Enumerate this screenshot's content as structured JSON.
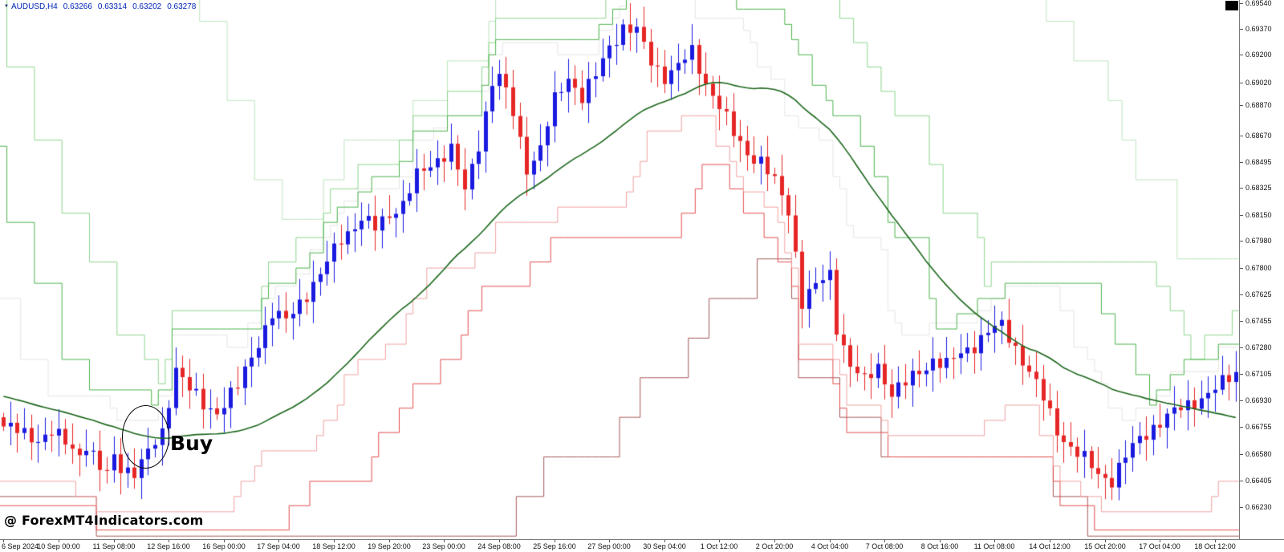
{
  "header": {
    "symbol": "AUDUSD,H4",
    "open": "0.63266",
    "high": "0.63314",
    "low": "0.63202",
    "close": "0.63278"
  },
  "icons": {
    "dropdown": "▼"
  },
  "watermark": {
    "text": "@ ForexMT4Indicators.com"
  },
  "annotation": {
    "label": "Buy",
    "index": 20,
    "price": 0.6652
  },
  "chart_data": {
    "type": "candlestick",
    "symbol": "AUDUSD",
    "timeframe": "H4",
    "n_candles": 180,
    "ylim": [
      0.6602,
      0.6956
    ],
    "legend_position": "none",
    "grid": false,
    "y_axis_labels": [
      "0.69540",
      "0.69370",
      "0.69200",
      "0.69020",
      "0.68870",
      "0.68670",
      "0.68495",
      "0.68325",
      "0.68150",
      "0.67980",
      "0.67800",
      "0.67625",
      "0.67455",
      "0.67280",
      "0.67105",
      "0.66930",
      "0.66755",
      "0.66580",
      "0.66405",
      "0.66230"
    ],
    "x_axis_labels": [
      "6 Sep 2024",
      "10 Sep 00:00",
      "11 Sep 08:00",
      "12 Sep 16:00",
      "16 Sep 00:00",
      "17 Sep 04:00",
      "18 Sep 12:00",
      "19 Sep 20:00",
      "23 Sep 00:00",
      "24 Sep 08:00",
      "25 Sep 16:00",
      "27 Sep 00:00",
      "30 Sep 04:00",
      "1 Oct 12:00",
      "2 Oct 20:00",
      "4 Oct 04:00",
      "7 Oct 08:00",
      "8 Oct 16:00",
      "11 Oct 08:00",
      "14 Oct 12:00",
      "15 Oct 20:00",
      "17 Oct 04:00",
      "18 Oct 12:00"
    ],
    "price_path": [
      [
        0,
        0.6676
      ],
      [
        3,
        0.6671
      ],
      [
        5,
        0.6668
      ],
      [
        7,
        0.6672
      ],
      [
        9,
        0.6665
      ],
      [
        11,
        0.6658
      ],
      [
        12,
        0.6665
      ],
      [
        14,
        0.6648
      ],
      [
        15,
        0.6644
      ],
      [
        16,
        0.6656
      ],
      [
        17,
        0.665
      ],
      [
        19,
        0.6646
      ],
      [
        21,
        0.6658
      ],
      [
        23,
        0.6672
      ],
      [
        25,
        0.6715
      ],
      [
        27,
        0.67
      ],
      [
        29,
        0.669
      ],
      [
        31,
        0.6686
      ],
      [
        34,
        0.6702
      ],
      [
        37,
        0.6732
      ],
      [
        39,
        0.675
      ],
      [
        41,
        0.6745
      ],
      [
        43,
        0.6758
      ],
      [
        46,
        0.6775
      ],
      [
        49,
        0.68
      ],
      [
        52,
        0.6812
      ],
      [
        54,
        0.6806
      ],
      [
        56,
        0.6816
      ],
      [
        58,
        0.6822
      ],
      [
        60,
        0.684
      ],
      [
        63,
        0.6852
      ],
      [
        65,
        0.6858
      ],
      [
        67,
        0.683
      ],
      [
        69,
        0.6862
      ],
      [
        71,
        0.6902
      ],
      [
        72,
        0.6906
      ],
      [
        74,
        0.6882
      ],
      [
        76,
        0.6846
      ],
      [
        78,
        0.6858
      ],
      [
        80,
        0.689
      ],
      [
        82,
        0.6906
      ],
      [
        84,
        0.6892
      ],
      [
        86,
        0.6906
      ],
      [
        88,
        0.6926
      ],
      [
        90,
        0.6938
      ],
      [
        92,
        0.6935
      ],
      [
        94,
        0.6916
      ],
      [
        96,
        0.6906
      ],
      [
        98,
        0.6912
      ],
      [
        100,
        0.6922
      ],
      [
        102,
        0.6902
      ],
      [
        104,
        0.6886
      ],
      [
        106,
        0.6868
      ],
      [
        108,
        0.6856
      ],
      [
        110,
        0.685
      ],
      [
        112,
        0.6836
      ],
      [
        114,
        0.6818
      ],
      [
        115,
        0.679
      ],
      [
        116,
        0.6758
      ],
      [
        118,
        0.6768
      ],
      [
        120,
        0.6776
      ],
      [
        121,
        0.6742
      ],
      [
        123,
        0.6716
      ],
      [
        125,
        0.6705
      ],
      [
        127,
        0.6716
      ],
      [
        129,
        0.6698
      ],
      [
        131,
        0.6704
      ],
      [
        133,
        0.6712
      ],
      [
        135,
        0.672
      ],
      [
        137,
        0.6716
      ],
      [
        139,
        0.6724
      ],
      [
        141,
        0.673
      ],
      [
        143,
        0.6738
      ],
      [
        145,
        0.6742
      ],
      [
        147,
        0.6728
      ],
      [
        149,
        0.6712
      ],
      [
        151,
        0.6694
      ],
      [
        153,
        0.6674
      ],
      [
        155,
        0.6662
      ],
      [
        157,
        0.6654
      ],
      [
        159,
        0.6645
      ],
      [
        161,
        0.6641
      ],
      [
        163,
        0.6656
      ],
      [
        165,
        0.6668
      ],
      [
        167,
        0.6676
      ],
      [
        169,
        0.6682
      ],
      [
        171,
        0.6688
      ],
      [
        173,
        0.6693
      ],
      [
        175,
        0.6697
      ],
      [
        177,
        0.6704
      ],
      [
        179,
        0.6712
      ]
    ],
    "colors": {
      "bull": "#1a1ae0",
      "bear": "#e62626",
      "background": "#ffffff"
    },
    "indicators": [
      {
        "name": "step-channel-faint-upper",
        "type": "step",
        "side": "high",
        "layer": "back",
        "window": 8,
        "offset": 0.0002,
        "quant": 0.0008,
        "color": "#e4e4e4",
        "width": 1
      },
      {
        "name": "step-channel-green-outer",
        "type": "step",
        "side": "high",
        "layer": "back",
        "window": 50,
        "offset": 0.0026,
        "quant": 0.0026,
        "color": "#bce4bc",
        "width": 1
      },
      {
        "name": "step-channel-green-mid",
        "type": "step",
        "side": "high",
        "layer": "back",
        "window": 22,
        "offset": 0.0013,
        "quant": 0.0016,
        "color": "#8cd48c",
        "width": 1
      },
      {
        "name": "step-channel-darkred-outer",
        "type": "step",
        "side": "low",
        "layer": "back",
        "window": 55,
        "offset": 0.0012,
        "quant": 0.0026,
        "color": "#a65858",
        "width": 1
      },
      {
        "name": "step-channel-red-mid",
        "type": "step",
        "side": "low",
        "layer": "back",
        "window": 22,
        "offset": 0.0016,
        "quant": 0.0016,
        "color": "#e24c4c",
        "width": 1
      },
      {
        "name": "step-channel-green-inner",
        "type": "step",
        "side": "high",
        "layer": "front",
        "window": 14,
        "offset": 0.0004,
        "quant": 0.001,
        "color": "#4cb24c",
        "width": 1
      },
      {
        "name": "step-channel-pink-inner",
        "type": "step",
        "side": "low",
        "layer": "front",
        "window": 14,
        "offset": 0.0004,
        "quant": 0.001,
        "color": "#f0a0a0",
        "width": 1
      },
      {
        "name": "moving-average",
        "type": "sma",
        "period": 34,
        "color": "#1a661a",
        "width": 1.6
      }
    ]
  }
}
